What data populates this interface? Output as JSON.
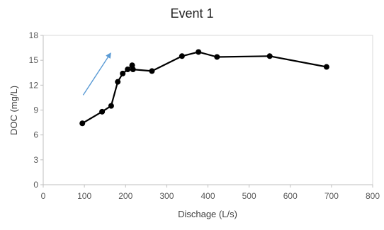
{
  "chart_data": {
    "type": "line",
    "title": "Event 1",
    "xlabel": "Dischage (L/s)",
    "ylabel": "DOC (mg/L)",
    "xlim": [
      0,
      800
    ],
    "ylim": [
      0,
      18
    ],
    "x_ticks": [
      "0",
      "100",
      "200",
      "300",
      "400",
      "500",
      "600",
      "700",
      "800"
    ],
    "y_ticks": [
      "0",
      "3",
      "6",
      "9",
      "12",
      "15",
      "18"
    ],
    "grid": false,
    "legend": "none",
    "series": [
      {
        "color": "#000000",
        "marker": "circle",
        "x": [
          95,
          143,
          165,
          181,
          193,
          205,
          216,
          218,
          264,
          337,
          377,
          422,
          550,
          688
        ],
        "y": [
          7.4,
          8.8,
          9.5,
          12.4,
          13.4,
          13.9,
          14.4,
          13.9,
          13.7,
          15.5,
          16.0,
          15.4,
          15.5,
          14.2
        ]
      }
    ],
    "annotations": [
      {
        "type": "arrow",
        "color": "#5b9bd5",
        "from": [
          97,
          10.8
        ],
        "to": [
          163,
          15.8
        ]
      }
    ]
  }
}
